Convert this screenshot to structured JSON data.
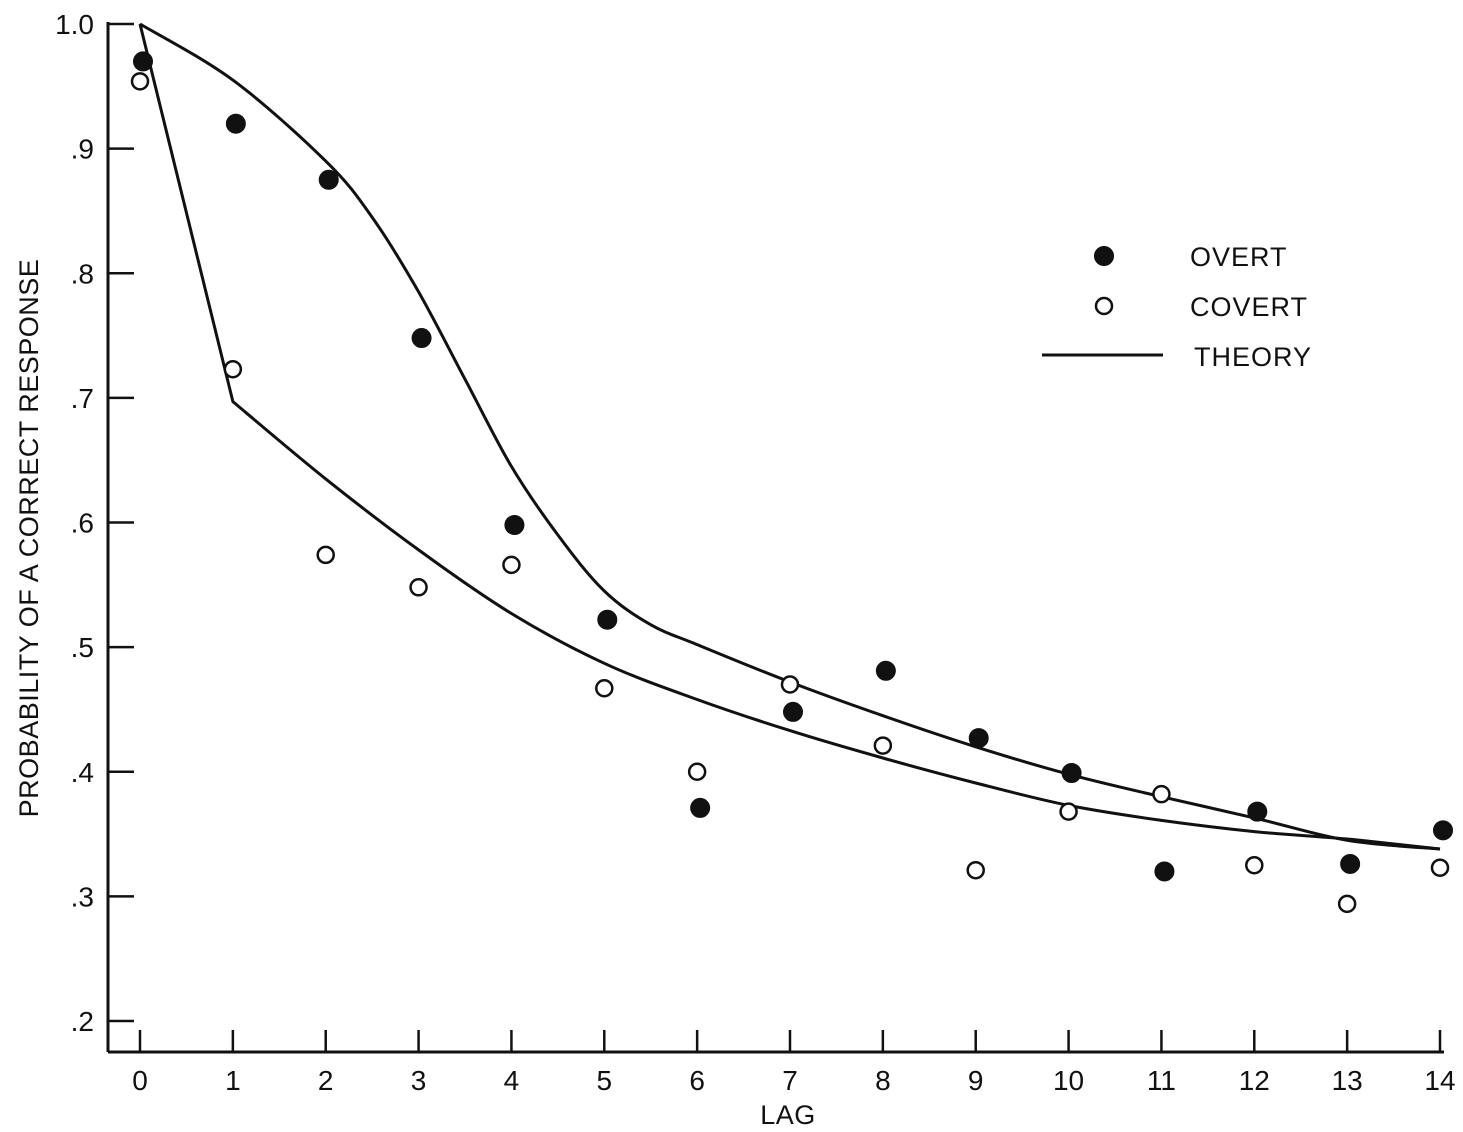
{
  "chart_data": {
    "type": "scatter",
    "title": "",
    "xlabel": "LAG",
    "ylabel": "PROBABILITY OF A CORRECT RESPONSE",
    "xlim": [
      0,
      14
    ],
    "ylim": [
      0.2,
      1.0
    ],
    "x_ticks": [
      0,
      1,
      2,
      3,
      4,
      5,
      6,
      7,
      8,
      9,
      10,
      11,
      12,
      13,
      14
    ],
    "x_tick_labels": [
      "0",
      "1",
      "2",
      "3",
      "4",
      "5",
      "6",
      "7",
      "8",
      "9",
      "10",
      "11",
      "12",
      "13",
      "14"
    ],
    "y_ticks": [
      0.2,
      0.3,
      0.4,
      0.5,
      0.6,
      0.7,
      0.8,
      0.9,
      1.0
    ],
    "y_tick_labels": [
      ".2",
      ".3",
      ".4",
      ".5",
      ".6",
      ".7",
      ".8",
      ".9",
      "1.0"
    ],
    "grid": false,
    "legend_position": "top-right",
    "legend": [
      {
        "label": "OVERT",
        "marker": "filled-circle"
      },
      {
        "label": "COVERT",
        "marker": "open-circle"
      },
      {
        "label": "THEORY",
        "marker": "line"
      }
    ],
    "series": [
      {
        "name": "OVERT",
        "kind": "scatter",
        "marker": "filled-circle",
        "color": "#111111",
        "x": [
          0,
          1,
          2,
          3,
          4,
          5,
          6,
          7,
          8,
          9,
          10,
          11,
          12,
          13,
          14
        ],
        "y": [
          0.97,
          0.92,
          0.875,
          0.748,
          0.598,
          0.522,
          0.371,
          0.448,
          0.481,
          0.427,
          0.399,
          0.32,
          0.368,
          0.326,
          0.353
        ]
      },
      {
        "name": "COVERT",
        "kind": "scatter",
        "marker": "open-circle",
        "color": "#111111",
        "x": [
          0,
          1,
          2,
          3,
          4,
          5,
          6,
          7,
          8,
          9,
          10,
          11,
          12,
          13,
          14
        ],
        "y": [
          0.954,
          0.723,
          0.574,
          0.548,
          0.566,
          0.467,
          0.4,
          0.47,
          0.421,
          0.321,
          0.368,
          0.382,
          0.325,
          0.294,
          0.323
        ]
      },
      {
        "name": "THEORY",
        "kind": "line",
        "curve": "overt",
        "color": "#111111",
        "x": [
          0,
          1,
          2,
          2.5,
          3,
          3.5,
          4,
          4.5,
          5,
          5.5,
          6,
          7,
          8,
          9,
          10,
          11,
          12,
          13,
          14
        ],
        "y": [
          1.0,
          0.955,
          0.89,
          0.845,
          0.785,
          0.715,
          0.645,
          0.59,
          0.545,
          0.518,
          0.502,
          0.472,
          0.445,
          0.42,
          0.398,
          0.38,
          0.363,
          0.345,
          0.338
        ]
      },
      {
        "name": "THEORY",
        "kind": "line",
        "curve": "covert",
        "color": "#111111",
        "x": [
          0,
          1,
          2,
          3,
          4,
          5,
          6,
          7,
          8,
          9,
          10,
          11,
          12,
          13,
          14
        ],
        "y": [
          1.0,
          0.697,
          0.635,
          0.578,
          0.527,
          0.487,
          0.458,
          0.433,
          0.411,
          0.391,
          0.373,
          0.361,
          0.352,
          0.346,
          0.338
        ]
      }
    ]
  }
}
